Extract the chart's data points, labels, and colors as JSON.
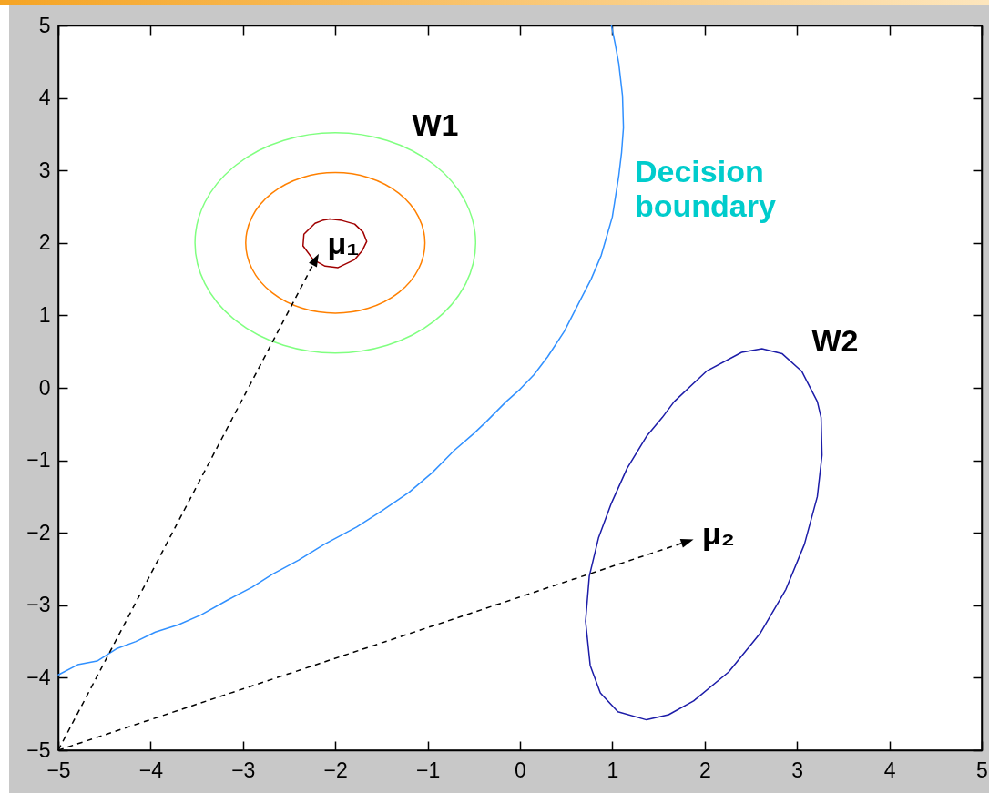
{
  "chart_data": {
    "type": "line",
    "xlim": [
      -5,
      5
    ],
    "ylim": [
      -5,
      5
    ],
    "xticks": [
      -5,
      -4,
      -3,
      -2,
      -1,
      0,
      1,
      2,
      3,
      4,
      5
    ],
    "yticks": [
      -5,
      -4,
      -3,
      -2,
      -1,
      0,
      1,
      2,
      3,
      4,
      5
    ],
    "series": [
      {
        "name": "Decision\nboundary",
        "color": "#3090ff",
        "x": [
          -5,
          -4.79,
          -4.58,
          -4.37,
          -4.16,
          -3.95,
          -3.7,
          -3.45,
          -3.17,
          -2.9,
          -2.68,
          -2.4,
          -2.12,
          -1.77,
          -1.5,
          -1.2,
          -0.95,
          -0.71,
          -0.5,
          -0.36,
          -0.15,
          0,
          0.15,
          0.3,
          0.48,
          0.64,
          0.77,
          0.88,
          1,
          1.07,
          1.1,
          1.12,
          1.11,
          1.07,
          1.03,
          0.99
        ],
        "values": [
          -3.96,
          -3.82,
          -3.77,
          -3.6,
          -3.5,
          -3.37,
          -3.27,
          -3.13,
          -2.93,
          -2.75,
          -2.57,
          -2.38,
          -2.16,
          -1.92,
          -1.7,
          -1.44,
          -1.17,
          -0.86,
          -0.63,
          -0.46,
          -0.19,
          -0.02,
          0.18,
          0.43,
          0.78,
          1.18,
          1.5,
          1.83,
          2.36,
          2.93,
          3.25,
          3.59,
          4.03,
          4.47,
          4.75,
          5
        ]
      }
    ],
    "annotations": [
      "W1",
      "μ₁",
      "W2",
      "μ₂"
    ]
  }
}
